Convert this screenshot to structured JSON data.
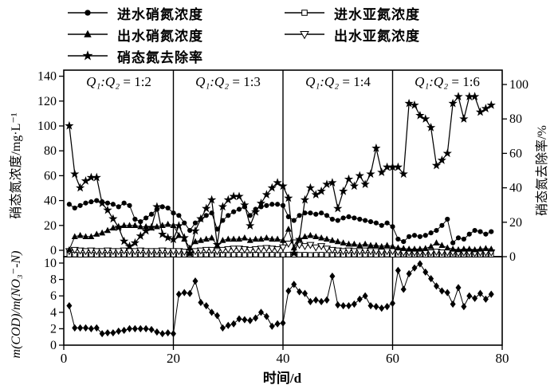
{
  "figure": {
    "background": "#ffffff",
    "ink": "#000000"
  },
  "legend": {
    "items": [
      {
        "label": "进水硝氮浓度",
        "marker": "filled-circle"
      },
      {
        "label": "出水硝氮浓度",
        "marker": "filled-triangle-up"
      },
      {
        "label": "硝态氮去除率",
        "marker": "filled-star"
      },
      {
        "label": "进水亚氮浓度",
        "marker": "open-square"
      },
      {
        "label": "出水亚氮浓度",
        "marker": "open-triangle-down"
      }
    ]
  },
  "axes": {
    "left_main_title": "硝态氮浓度/mg·L⁻¹",
    "right_main_title": "硝态氮去除率/%",
    "left_lower_title": "m(COD)/m(NO₃⁻-N)",
    "x_title": "时间/d"
  },
  "regions": [
    {
      "label_q": "Q₁:Q₂",
      "label_eq": " = 1:2",
      "x_start": 0,
      "x_end": 20
    },
    {
      "label_q": "Q₁:Q₂",
      "label_eq": " = 1:3",
      "x_start": 20,
      "x_end": 40
    },
    {
      "label_q": "Q₁:Q₂",
      "label_eq": " = 1:4",
      "x_start": 40,
      "x_end": 60
    },
    {
      "label_q": "Q₁:Q₂",
      "label_eq": " = 1:6",
      "x_start": 60,
      "x_end": 80
    }
  ],
  "chart_data": {
    "type": "line",
    "xlabel": "时间/d",
    "xlim": [
      0,
      80
    ],
    "x_ticks": [
      0,
      20,
      40,
      60,
      80
    ],
    "x_start_day": 1,
    "dividers_x": [
      20,
      40,
      60
    ],
    "grid": false,
    "legend_position": "top",
    "panels": [
      {
        "name": "main",
        "ylabel_left": "硝态氮浓度/mg·L⁻¹",
        "ylim_left": [
          0,
          145
        ],
        "yticks_left": [
          0,
          20,
          40,
          60,
          80,
          100,
          120,
          140
        ],
        "ylabel_right": "硝态氮去除率/%",
        "ylim_right": [
          0,
          100
        ],
        "yticks_right": [
          0,
          20,
          40,
          60,
          80,
          100
        ],
        "series": [
          {
            "key": "influent_no2",
            "name": "进水亚氮浓度",
            "marker": "open-square",
            "axis": "left",
            "values": [
              0.3,
              0.4,
              0.2,
              0.3,
              0.4,
              0.2,
              0.3,
              0.4,
              0.2,
              0.3,
              0.4,
              0.2,
              0.3,
              0.4,
              0.2,
              0.3,
              0.4,
              0.2,
              0.3,
              0.4,
              0.2,
              0.3,
              0.4,
              0.2,
              0.3,
              0.4,
              0.2,
              0.3,
              0.4,
              0.2,
              0.3,
              0.4,
              0.2,
              0.3,
              0.4,
              0.2,
              0.3,
              0.4,
              0.2,
              0.3,
              0.4,
              0.2,
              0.3,
              0.4,
              0.2,
              0.3,
              0.4,
              0.2,
              0.3,
              0.4,
              0.2,
              0.3,
              0.4,
              0.2,
              0.3,
              0.4,
              0.2,
              0.3,
              0.4,
              0.2,
              0.3,
              0.4,
              0.2,
              0.3,
              0.4,
              0.2,
              0.3,
              0.4,
              0.2,
              0.3,
              0.4,
              0.2,
              0.3,
              0.4,
              0.2,
              0.3,
              0.4,
              0.2
            ]
          },
          {
            "key": "effluent_no2",
            "name": "出水亚氮浓度",
            "marker": "open-triangle-down",
            "axis": "left",
            "values": [
              2,
              3,
              2.5,
              2,
              2.5,
              2,
              2,
              2.5,
              2,
              2,
              2.5,
              2,
              2,
              2.5,
              2,
              2,
              2,
              2.5,
              2,
              2,
              2,
              1.5,
              1,
              2,
              2.5,
              3,
              3,
              2,
              3,
              3.5,
              4,
              4,
              3.5,
              3,
              3.5,
              4,
              4.5,
              4,
              3.5,
              5,
              8,
              9,
              7,
              6,
              7,
              5,
              6,
              4,
              3,
              2.5,
              2,
              2.5,
              2,
              2,
              2.5,
              2,
              2,
              1.5,
              2,
              2,
              1.5,
              1,
              1,
              1,
              1,
              1,
              1,
              1.5,
              1,
              1,
              1,
              0.5,
              1,
              1,
              0.5,
              1,
              1,
              1
            ]
          },
          {
            "key": "effluent_no3",
            "name": "出水硝氮浓度",
            "marker": "filled-triangle-up",
            "axis": "left",
            "values": [
              0.5,
              11,
              12,
              11,
              11,
              13,
              14,
              16,
              18,
              19,
              20,
              20,
              20,
              19,
              19,
              18,
              19,
              20,
              21,
              20,
              12,
              9,
              2,
              7,
              8,
              9,
              10,
              4,
              8,
              9,
              9,
              9,
              10,
              8,
              9,
              9,
              10,
              9,
              9,
              8,
              17,
              2,
              9,
              11,
              12,
              11,
              10,
              9,
              8,
              7,
              6,
              5,
              5,
              4,
              5,
              4,
              4,
              3,
              4,
              3,
              2,
              1.5,
              1,
              1,
              1,
              1.5,
              3,
              6,
              4,
              2,
              1,
              0.5,
              1,
              1,
              0.5,
              1,
              1.5,
              1
            ]
          },
          {
            "key": "influent_no3",
            "name": "进水硝氮浓度",
            "marker": "filled-circle",
            "axis": "left",
            "values": [
              37,
              34,
              36,
              38,
              39,
              40,
              39,
              38,
              37,
              35,
              38,
              36,
              25,
              23,
              26,
              29,
              33,
              35,
              34,
              30,
              28,
              22,
              16,
              22,
              25,
              28,
              30,
              17,
              24,
              28,
              31,
              33,
              35,
              28,
              33,
              35,
              36,
              37,
              37,
              36,
              27,
              24,
              28,
              30,
              30,
              29,
              30,
              28,
              25,
              24,
              26,
              27,
              26,
              25,
              24,
              23,
              22,
              20,
              22,
              19,
              9,
              7,
              11,
              12,
              11,
              12,
              14,
              16,
              20,
              25,
              6,
              10,
              9,
              13,
              16,
              15,
              13,
              15
            ]
          },
          {
            "key": "removal_pct",
            "name": "硝态氮去除率",
            "marker": "filled-star",
            "axis": "right",
            "values": [
              76,
              48,
              40,
              44,
              46,
              46,
              31,
              27,
              22,
              17,
              9,
              6,
              8,
              12,
              15,
              17,
              29,
              13,
              11,
              10,
              18,
              11,
              2,
              15,
              22,
              28,
              33,
              7,
              29,
              33,
              35,
              35,
              30,
              18,
              26,
              31,
              36,
              40,
              43,
              41,
              34,
              2,
              10,
              33,
              40,
              36,
              38,
              42,
              43,
              28,
              38,
              45,
              41,
              47,
              42,
              48,
              63,
              49,
              52,
              52,
              52,
              48,
              89,
              88,
              82,
              80,
              75,
              53,
              56,
              60,
              89,
              93,
              80,
              93,
              93,
              84,
              86,
              88
            ]
          }
        ]
      },
      {
        "name": "cod_ratio",
        "ylabel": "m(COD)/m(NO₃⁻-N)",
        "ylim": [
          0,
          10
        ],
        "yticks": [
          0,
          2,
          4,
          6,
          8,
          10
        ],
        "series": [
          {
            "key": "cod_no3_ratio",
            "name": "m(COD)/m(NO₃⁻-N)",
            "marker": "filled-diamond",
            "axis": "lower",
            "values": [
              4.8,
              2.1,
              2.1,
              2.1,
              2.0,
              2.1,
              1.4,
              1.5,
              1.5,
              1.7,
              1.8,
              2.0,
              2.0,
              2.0,
              2.0,
              1.9,
              1.6,
              1.4,
              1.5,
              1.4,
              6.2,
              6.4,
              6.3,
              7.8,
              5.2,
              4.8,
              4.0,
              3.6,
              2.1,
              2.4,
              2.6,
              3.2,
              3.1,
              3.0,
              3.3,
              4.0,
              3.5,
              2.3,
              2.6,
              2.7,
              6.6,
              7.4,
              6.5,
              6.3,
              5.3,
              5.5,
              5.3,
              5.5,
              8.4,
              4.9,
              4.8,
              4.8,
              5.0,
              5.6,
              6.0,
              4.8,
              4.7,
              4.5,
              4.7,
              5.1,
              9.1,
              6.8,
              8.7,
              9.4,
              9.9,
              8.9,
              8.1,
              7.2,
              6.6,
              6.4,
              5.0,
              7.0,
              4.7,
              6.0,
              5.7,
              6.3,
              5.6,
              6.2
            ]
          }
        ]
      }
    ]
  }
}
